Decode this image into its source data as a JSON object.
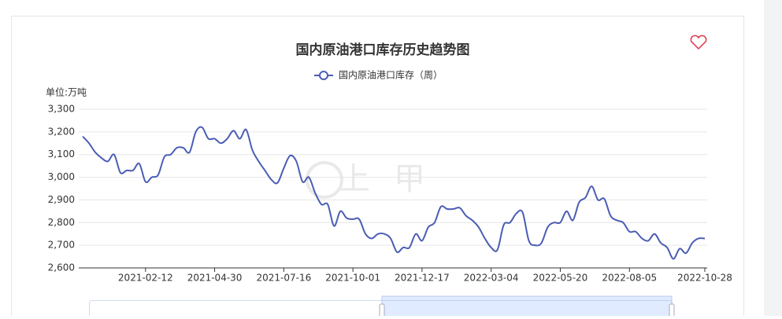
{
  "chart_data": {
    "type": "line",
    "title": "国内原油港口库存历史趋势图",
    "y_axis_label": "单位:万吨",
    "watermark": "上甲",
    "categories": [
      null,
      null,
      null,
      null,
      null,
      null,
      null,
      null,
      null,
      null,
      "2021-02-12",
      null,
      null,
      null,
      null,
      null,
      null,
      null,
      null,
      null,
      null,
      "2021-04-30",
      null,
      null,
      null,
      null,
      null,
      null,
      null,
      null,
      null,
      null,
      "2021-07-16",
      null,
      null,
      null,
      null,
      null,
      null,
      null,
      null,
      null,
      null,
      "2021-10-01",
      null,
      null,
      null,
      null,
      null,
      null,
      null,
      null,
      null,
      null,
      "2021-12-17",
      null,
      null,
      null,
      null,
      null,
      null,
      null,
      null,
      null,
      null,
      "2022-03-04",
      null,
      null,
      null,
      null,
      null,
      null,
      null,
      null,
      null,
      null,
      "2022-05-20",
      null,
      null,
      null,
      null,
      null,
      null,
      null,
      null,
      null,
      null,
      "2022-08-05",
      null,
      null,
      null,
      null,
      null,
      null,
      null,
      null,
      null,
      null,
      null,
      "2022-10-28"
    ],
    "series": [
      {
        "name": "国内原油港口库存（周）",
        "color": "#4a5db4",
        "values": [
          3180,
          3150,
          3110,
          3085,
          3070,
          3100,
          3020,
          3030,
          3030,
          3060,
          2980,
          3000,
          3010,
          3090,
          3100,
          3130,
          3130,
          3110,
          3200,
          3220,
          3170,
          3170,
          3150,
          3170,
          3205,
          3170,
          3210,
          3120,
          3070,
          3030,
          2990,
          2975,
          3040,
          3095,
          3070,
          2980,
          3000,
          2930,
          2880,
          2880,
          2785,
          2850,
          2820,
          2815,
          2815,
          2750,
          2730,
          2750,
          2750,
          2730,
          2670,
          2690,
          2690,
          2750,
          2720,
          2780,
          2800,
          2870,
          2860,
          2860,
          2865,
          2830,
          2810,
          2780,
          2730,
          2690,
          2680,
          2790,
          2800,
          2840,
          2845,
          2720,
          2700,
          2710,
          2780,
          2800,
          2800,
          2850,
          2810,
          2890,
          2910,
          2960,
          2900,
          2905,
          2830,
          2810,
          2800,
          2760,
          2760,
          2730,
          2720,
          2750,
          2710,
          2690,
          2640,
          2685,
          2665,
          2710,
          2730,
          2730
        ]
      }
    ],
    "ylim": [
      2600,
      3300
    ],
    "yticks": [
      {
        "value": 2600,
        "label": "2,600"
      },
      {
        "value": 2700,
        "label": "2,700"
      },
      {
        "value": 2800,
        "label": "2,800"
      },
      {
        "value": 2900,
        "label": "2,900"
      },
      {
        "value": 3000,
        "label": "3,000"
      },
      {
        "value": 3100,
        "label": "3,100"
      },
      {
        "value": 3200,
        "label": "3,200"
      },
      {
        "value": 3300,
        "label": "3,300"
      }
    ],
    "grid": true
  }
}
